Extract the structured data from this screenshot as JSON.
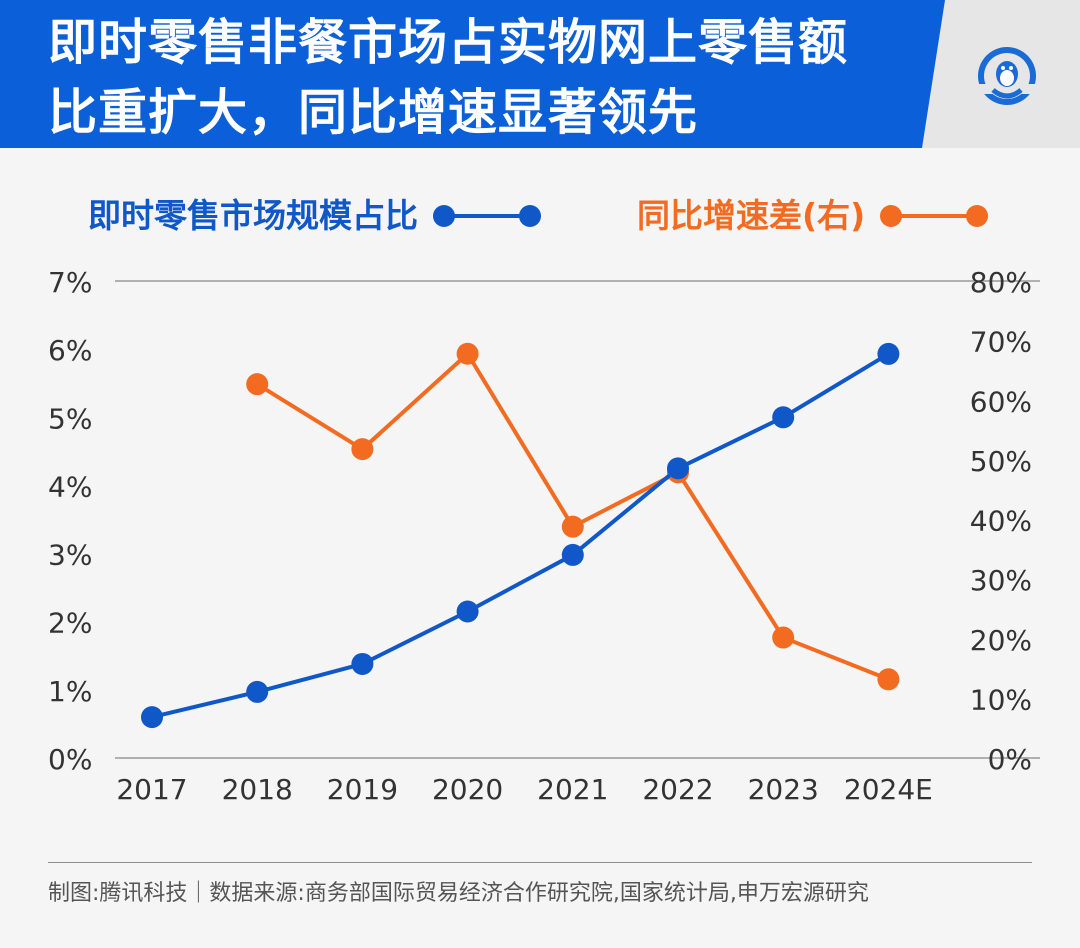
{
  "header": {
    "title_line1": "即时零售非餐市场占实物网上零售额",
    "title_line2": "比重扩大，同比增速显著领先",
    "logo": "tencent-news-logo"
  },
  "colors": {
    "brand_blue": "#0b5fd8",
    "series_blue": "#1058c8",
    "series_orange": "#f26b21",
    "axis_text": "#333333",
    "grid": "#9a9a9a"
  },
  "footer": {
    "credit": "制图:腾讯科技｜数据来源:商务部国际贸易经济合作研究院,国家统计局,申万宏源研究"
  },
  "chart_data": {
    "type": "line",
    "categories": [
      "2017",
      "2018",
      "2019",
      "2020",
      "2021",
      "2022",
      "2023",
      "2024E"
    ],
    "series": [
      {
        "name": "即时零售市场规模占比",
        "axis": "left",
        "color": "#1058c8",
        "values": [
          0.6,
          0.97,
          1.38,
          2.15,
          2.98,
          4.25,
          5.0,
          5.93
        ]
      },
      {
        "name": "同比增速差(右)",
        "axis": "right",
        "color": "#f26b21",
        "values": [
          null,
          62.7,
          51.8,
          67.8,
          38.8,
          47.9,
          20.2,
          13.2
        ]
      }
    ],
    "left_axis": {
      "ylim": [
        0,
        7
      ],
      "ticks": [
        "0%",
        "1%",
        "2%",
        "3%",
        "4%",
        "5%",
        "6%",
        "7%"
      ]
    },
    "right_axis": {
      "ylim": [
        0,
        80
      ],
      "ticks": [
        "0%",
        "10%",
        "20%",
        "30%",
        "40%",
        "50%",
        "60%",
        "70%",
        "80%"
      ]
    },
    "legend_position": "top"
  }
}
